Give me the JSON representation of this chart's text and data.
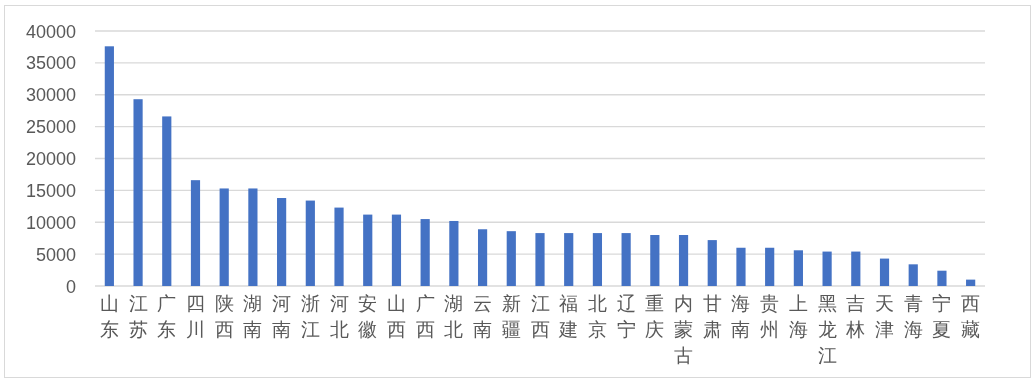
{
  "chart_data": {
    "type": "bar",
    "categories": [
      "山东",
      "江苏",
      "广东",
      "四川",
      "陕西",
      "湖南",
      "河南",
      "浙江",
      "河北",
      "安徽",
      "山西",
      "广西",
      "湖北",
      "云南",
      "新疆",
      "江西",
      "福建",
      "北京",
      "辽宁",
      "重庆",
      "内蒙古",
      "甘肃",
      "海南",
      "贵州",
      "上海",
      "黑龙江",
      "吉林",
      "天津",
      "青海",
      "宁夏",
      "西藏"
    ],
    "values": [
      37600,
      29300,
      26600,
      16600,
      15300,
      15300,
      13800,
      13400,
      12300,
      11200,
      11200,
      10500,
      10200,
      8900,
      8600,
      8300,
      8300,
      8300,
      8300,
      8000,
      8000,
      7200,
      6000,
      6000,
      5600,
      5400,
      5400,
      4300,
      3400,
      2400,
      1000
    ],
    "color": "#4472c4",
    "ylim": [
      0,
      40000
    ],
    "yticks": [
      0,
      5000,
      10000,
      15000,
      20000,
      25000,
      30000,
      35000,
      40000
    ],
    "grid": "y"
  }
}
